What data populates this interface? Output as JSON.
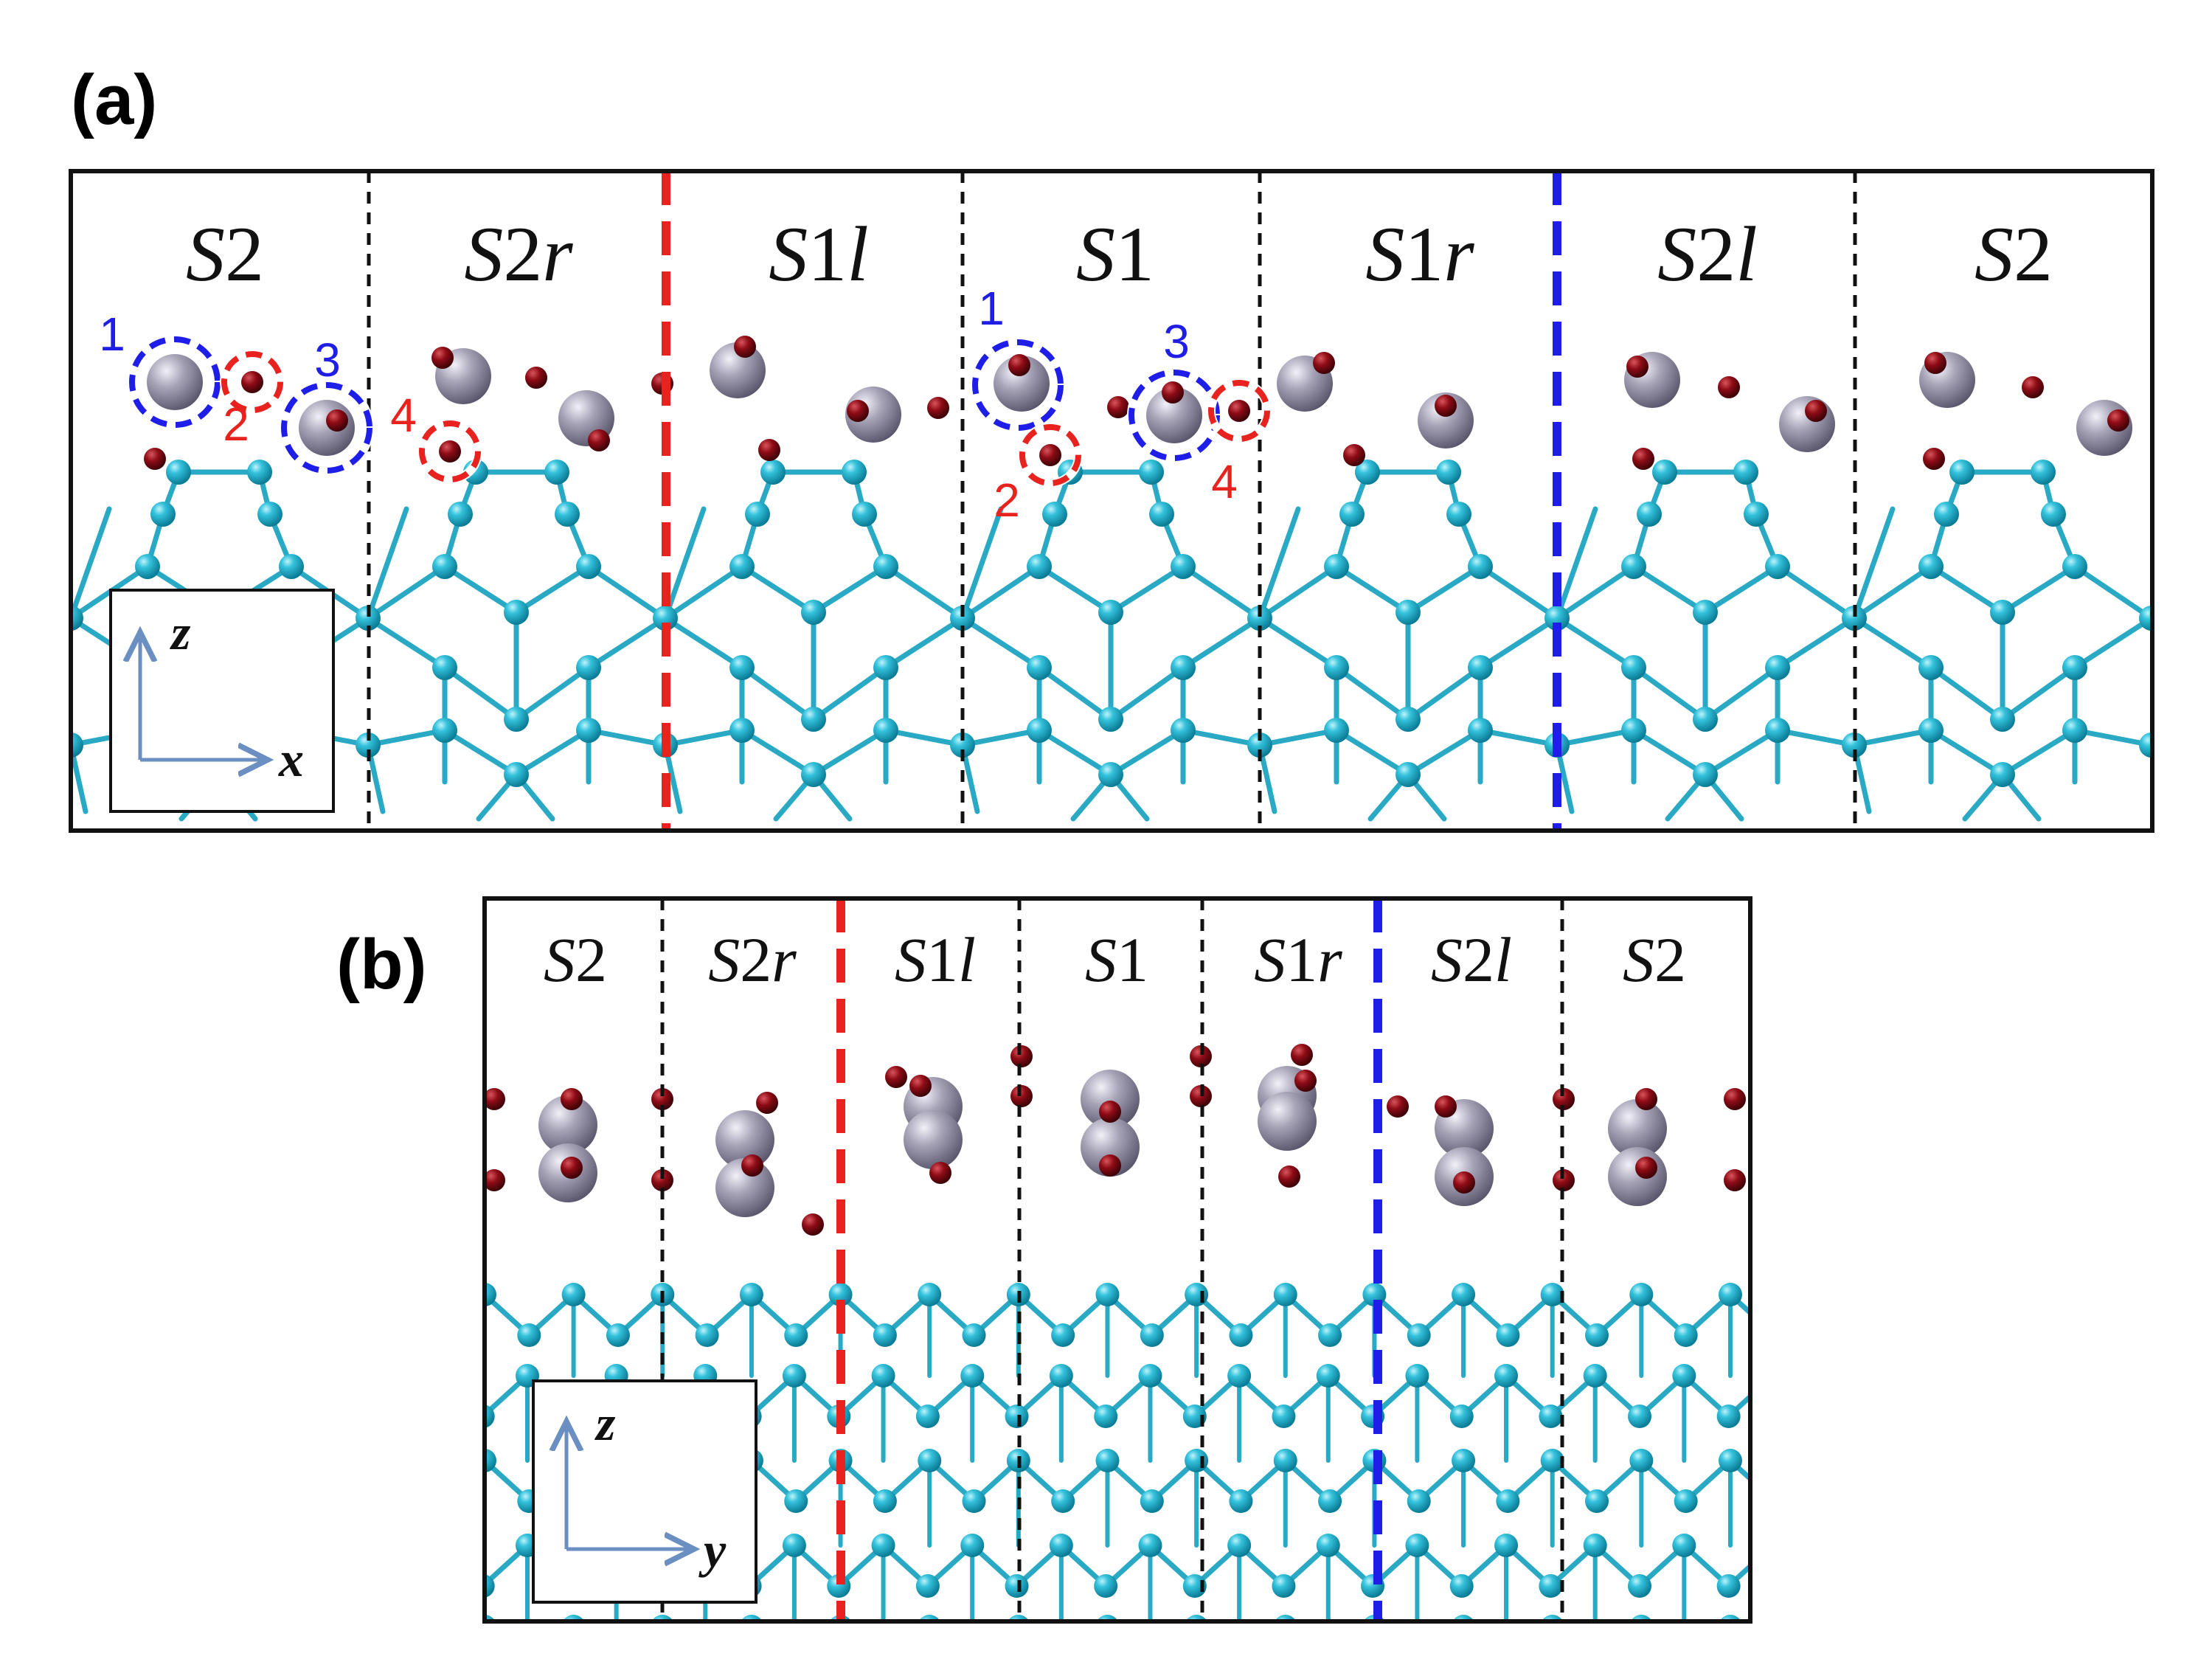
{
  "colors": {
    "frame": "#111111",
    "bond": "#2aa9c4",
    "atom": "#27b4cf",
    "atom_dark": "#0b7e98",
    "large_atom": "#9a97ab",
    "small_atom": "#7a0a12",
    "red_line": "#e8231f",
    "blue_line": "#1e1ee8",
    "black_line": "#111111",
    "axis_arrow": "#6b8fc0"
  },
  "panel_a": {
    "label": "(a)",
    "regions": [
      {
        "base": "S",
        "num": "2",
        "suffix": ""
      },
      {
        "base": "S",
        "num": "2",
        "suffix": "r"
      },
      {
        "base": "S",
        "num": "1",
        "suffix": "l"
      },
      {
        "base": "S",
        "num": "1",
        "suffix": ""
      },
      {
        "base": "S",
        "num": "1",
        "suffix": "r"
      },
      {
        "base": "S",
        "num": "2",
        "suffix": "l"
      },
      {
        "base": "S",
        "num": "2",
        "suffix": ""
      }
    ],
    "site_labels": [
      "1",
      "2",
      "3",
      "4",
      "1",
      "2",
      "3",
      "4"
    ],
    "axes": {
      "vertical": "z",
      "horizontal": "x"
    }
  },
  "panel_b": {
    "label": "(b)",
    "regions": [
      {
        "base": "S",
        "num": "2",
        "suffix": ""
      },
      {
        "base": "S",
        "num": "2",
        "suffix": "r"
      },
      {
        "base": "S",
        "num": "1",
        "suffix": "l"
      },
      {
        "base": "S",
        "num": "1",
        "suffix": ""
      },
      {
        "base": "S",
        "num": "1",
        "suffix": "r"
      },
      {
        "base": "S",
        "num": "2",
        "suffix": "l"
      },
      {
        "base": "S",
        "num": "2",
        "suffix": ""
      }
    ],
    "axes": {
      "vertical": "z",
      "horizontal": "y"
    }
  }
}
